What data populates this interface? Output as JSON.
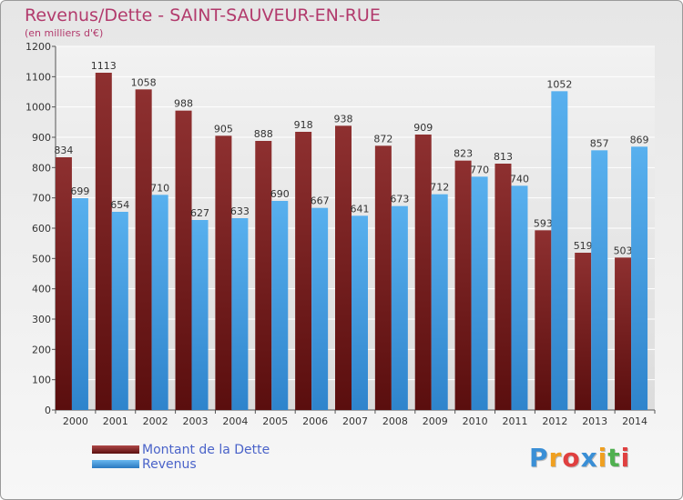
{
  "chart_data": {
    "type": "bar",
    "title": "Revenus/Dette - SAINT-SAUVEUR-EN-RUE",
    "subtitle": "(en milliers d'€)",
    "categories": [
      "2000",
      "2001",
      "2002",
      "2003",
      "2004",
      "2005",
      "2006",
      "2007",
      "2008",
      "2009",
      "2010",
      "2011",
      "2012",
      "2013",
      "2014"
    ],
    "series": [
      {
        "name": "Montant de la Dette",
        "values": [
          834,
          1113,
          1058,
          988,
          905,
          888,
          918,
          938,
          872,
          909,
          823,
          813,
          593,
          519,
          503
        ],
        "color": "#8b2a2a"
      },
      {
        "name": "Revenus",
        "values": [
          699,
          654,
          710,
          627,
          633,
          690,
          667,
          641,
          673,
          712,
          770,
          740,
          1052,
          857,
          869
        ],
        "color": "#4aa3e6"
      }
    ],
    "ylim": [
      0,
      1200
    ],
    "yticks": [
      0,
      100,
      200,
      300,
      400,
      500,
      600,
      700,
      800,
      900,
      1000,
      1100,
      1200
    ],
    "grid": true,
    "legend": "bottom-left"
  },
  "logo": {
    "letters": [
      "P",
      "r",
      "o",
      "x",
      "i",
      "t",
      "i"
    ],
    "colors": [
      "#3a8fd6",
      "#f0a020",
      "#e04040",
      "#3a8fd6",
      "#f0a020",
      "#50b050",
      "#e04040"
    ]
  }
}
